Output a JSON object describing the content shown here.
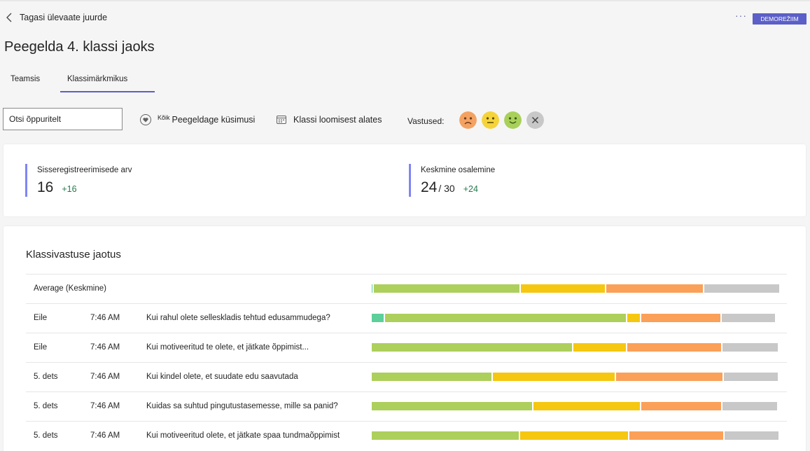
{
  "header": {
    "back_label": "Tagasi ülevaate juurde",
    "more_label": "···",
    "demo_label": "DEMOREŽIIM",
    "page_title": "Peegelda 4. klassi jaoks"
  },
  "tabs": [
    {
      "label": "Teamsis",
      "active": false
    },
    {
      "label": "Klassimärkmikus",
      "active": true
    }
  ],
  "filters": {
    "search_value": "Otsi õppuritelt",
    "questions_prefix": "Kõik",
    "questions_label": "Peegeldage küsimusi",
    "date_label": "Klassi loomisest alates",
    "responses_label": "Vastused:"
  },
  "emojis": [
    {
      "name": "sad",
      "color": "#f4a261"
    },
    {
      "name": "neutral",
      "color": "#f5d33b"
    },
    {
      "name": "happy",
      "color": "#a8d05a"
    },
    {
      "name": "none",
      "color": "#c8c8c8"
    }
  ],
  "stats": [
    {
      "label": "Sisseregistreerimisede arv",
      "value": "16",
      "denominator": "",
      "delta": "+16"
    },
    {
      "label": "Keskmine osalemine",
      "value": "24",
      "denominator": "/ 30",
      "delta": "+24"
    }
  ],
  "distribution": {
    "title": "Klassivastuse jaotus",
    "colors": {
      "very_happy": "#5ccf9b",
      "happy": "#adcf5c",
      "neutral": "#f5c710",
      "sad": "#fba058",
      "no_response": "#c8c8c8"
    },
    "average": {
      "label": "Average (Keskmine)",
      "shares": [
        0.003,
        0.36,
        0.21,
        0.24,
        0.187
      ]
    },
    "rows": [
      {
        "day": "Eile",
        "time": "7:46 AM",
        "question": "Kui rahul olete selleskladis tehtud edusammudega?",
        "shares": [
          0.033,
          0.595,
          0.035,
          0.198,
          0.134
        ]
      },
      {
        "day": "Eile",
        "time": "7:46 AM",
        "question": "Kui motiveeritud te olete, et jätkate õppimist...",
        "shares": [
          0,
          0.495,
          0.133,
          0.233,
          0.139
        ]
      },
      {
        "day": "5. dets",
        "time": "7:46 AM",
        "question": "Kui kindel olete, et suudate edu saavutada",
        "shares": [
          0,
          0.297,
          0.302,
          0.265,
          0.136
        ]
      },
      {
        "day": "5. dets",
        "time": "7:46 AM",
        "question": "Kuidas sa suhtud pingutustasemesse, mille sa panid?",
        "shares": [
          0,
          0.397,
          0.265,
          0.2,
          0.138
        ]
      },
      {
        "day": "5. dets",
        "time": "7:46 AM",
        "question": "Kui motiveeritud olete, et jätkate spaa tundmaõppimist",
        "shares": [
          0,
          0.364,
          0.268,
          0.233,
          0.135
        ]
      }
    ]
  }
}
